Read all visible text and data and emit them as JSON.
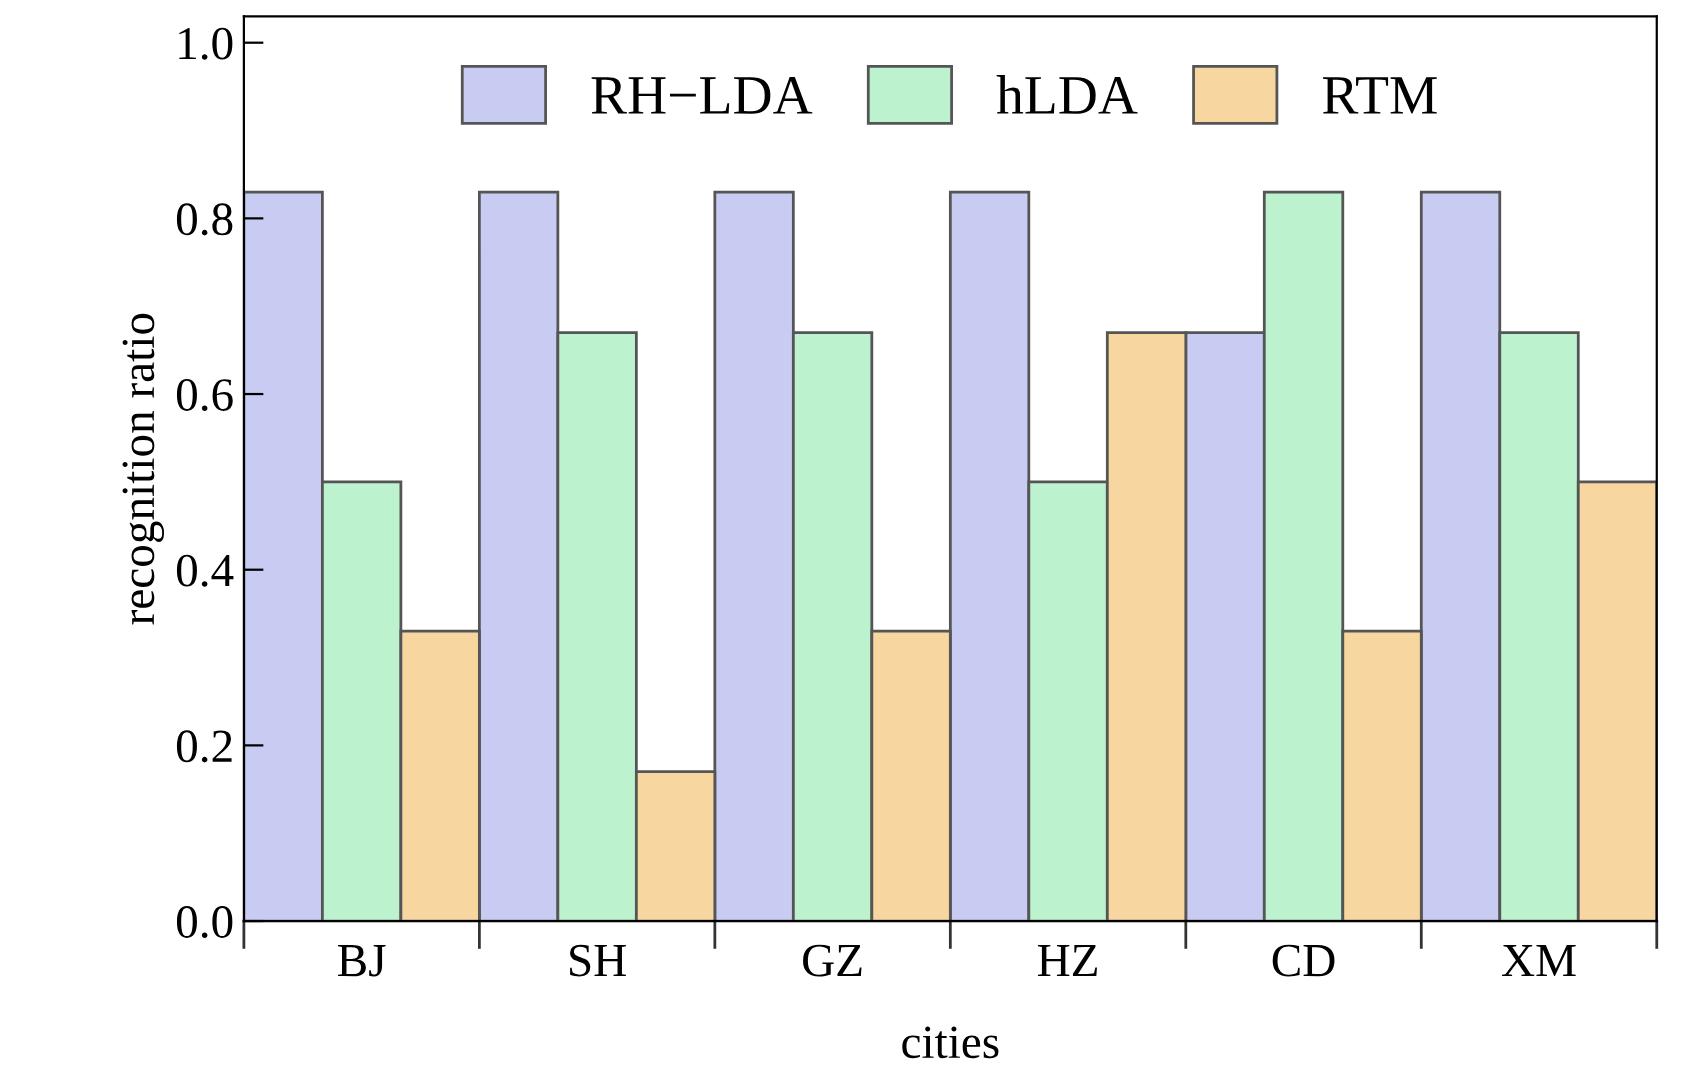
{
  "chart_data": {
    "type": "bar",
    "xlabel": "cities",
    "ylabel": "recognition ratio",
    "categories": [
      "BJ",
      "SH",
      "GZ",
      "HZ",
      "CD",
      "XM"
    ],
    "series": [
      {
        "name": "RH−LDA",
        "color": "#c9ccf2",
        "values": [
          0.83,
          0.83,
          0.83,
          0.83,
          0.67,
          0.83
        ]
      },
      {
        "name": "hLDA",
        "color": "#bdf2cf",
        "values": [
          0.5,
          0.67,
          0.67,
          0.5,
          0.83,
          0.67
        ]
      },
      {
        "name": "RTM",
        "color": "#f7d6a0",
        "values": [
          0.33,
          0.17,
          0.33,
          0.67,
          0.33,
          0.5
        ]
      }
    ],
    "ylim": [
      0,
      1.03
    ],
    "yticks": [
      {
        "value": 0,
        "label": "0.0"
      },
      {
        "value": 0.2,
        "label": "0.2"
      },
      {
        "value": 0.4,
        "label": "0.4"
      },
      {
        "value": 0.6,
        "label": "0.6"
      },
      {
        "value": 0.8,
        "label": "0.8"
      },
      {
        "value": 1,
        "label": "1.0"
      }
    ],
    "grid": false,
    "legend": "top"
  }
}
